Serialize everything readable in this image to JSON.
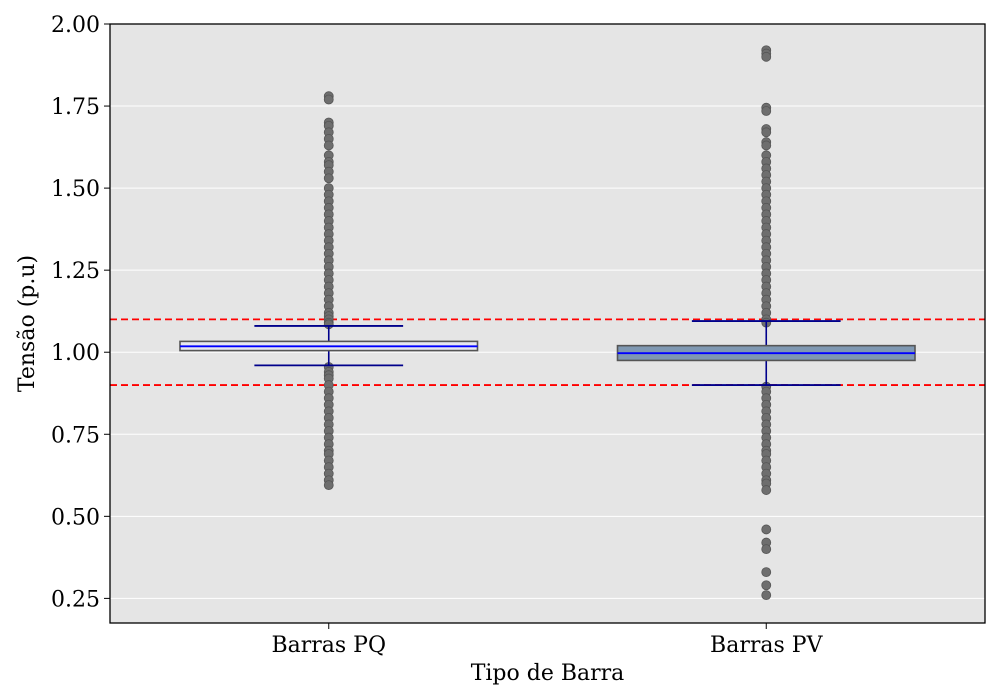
{
  "chart_data": {
    "type": "box",
    "xlabel": "Tipo de Barra",
    "ylabel": "Tensão (p.u)",
    "ylim": [
      0.175,
      2.0
    ],
    "yticks": [
      0.25,
      0.5,
      0.75,
      1.0,
      1.25,
      1.5,
      1.75,
      2.0
    ],
    "ytick_labels": [
      "0.25",
      "0.50",
      "0.75",
      "1.00",
      "1.25",
      "1.50",
      "1.75",
      "2.00"
    ],
    "grid": "horizontal",
    "reference_lines": [
      1.1,
      0.9
    ],
    "colors": {
      "background": "#e5e5e5",
      "grid": "#ffffff",
      "whisker": "#00008b",
      "median": "#0000ff",
      "reference_line": "#ff0000",
      "outlier": "#6e6e6e",
      "box_edge": "#555555"
    },
    "categories": [
      "Barras PQ",
      "Barras PV"
    ],
    "boxes": [
      {
        "category": "Barras PQ",
        "fill": "#e8e8f0",
        "whisker_low": 0.96,
        "q1": 1.005,
        "median": 1.018,
        "q3": 1.033,
        "whisker_high": 1.08,
        "outliers": [
          1.78,
          1.77,
          1.7,
          1.69,
          1.67,
          1.65,
          1.63,
          1.6,
          1.58,
          1.57,
          1.55,
          1.53,
          1.5,
          1.48,
          1.46,
          1.44,
          1.42,
          1.4,
          1.38,
          1.36,
          1.34,
          1.32,
          1.3,
          1.28,
          1.26,
          1.24,
          1.22,
          1.2,
          1.18,
          1.16,
          1.14,
          1.12,
          1.11,
          1.1,
          1.09,
          1.085,
          0.955,
          0.94,
          0.93,
          0.92,
          0.9,
          0.88,
          0.86,
          0.84,
          0.82,
          0.8,
          0.78,
          0.76,
          0.74,
          0.72,
          0.7,
          0.69,
          0.67,
          0.65,
          0.63,
          0.61,
          0.595
        ]
      },
      {
        "category": "Barras PV",
        "fill": "#7f98b2",
        "whisker_low": 0.9,
        "q1": 0.975,
        "median": 0.997,
        "q3": 1.02,
        "whisker_high": 1.095,
        "outliers": [
          1.92,
          1.91,
          1.9,
          1.745,
          1.735,
          1.68,
          1.67,
          1.64,
          1.63,
          1.6,
          1.58,
          1.56,
          1.54,
          1.52,
          1.5,
          1.48,
          1.46,
          1.44,
          1.42,
          1.4,
          1.38,
          1.36,
          1.34,
          1.32,
          1.3,
          1.28,
          1.26,
          1.24,
          1.22,
          1.2,
          1.18,
          1.16,
          1.14,
          1.12,
          1.1,
          1.09,
          0.895,
          0.88,
          0.86,
          0.84,
          0.82,
          0.8,
          0.78,
          0.76,
          0.74,
          0.72,
          0.7,
          0.69,
          0.67,
          0.65,
          0.63,
          0.61,
          0.6,
          0.58,
          0.46,
          0.42,
          0.4,
          0.33,
          0.29,
          0.26
        ]
      }
    ]
  }
}
